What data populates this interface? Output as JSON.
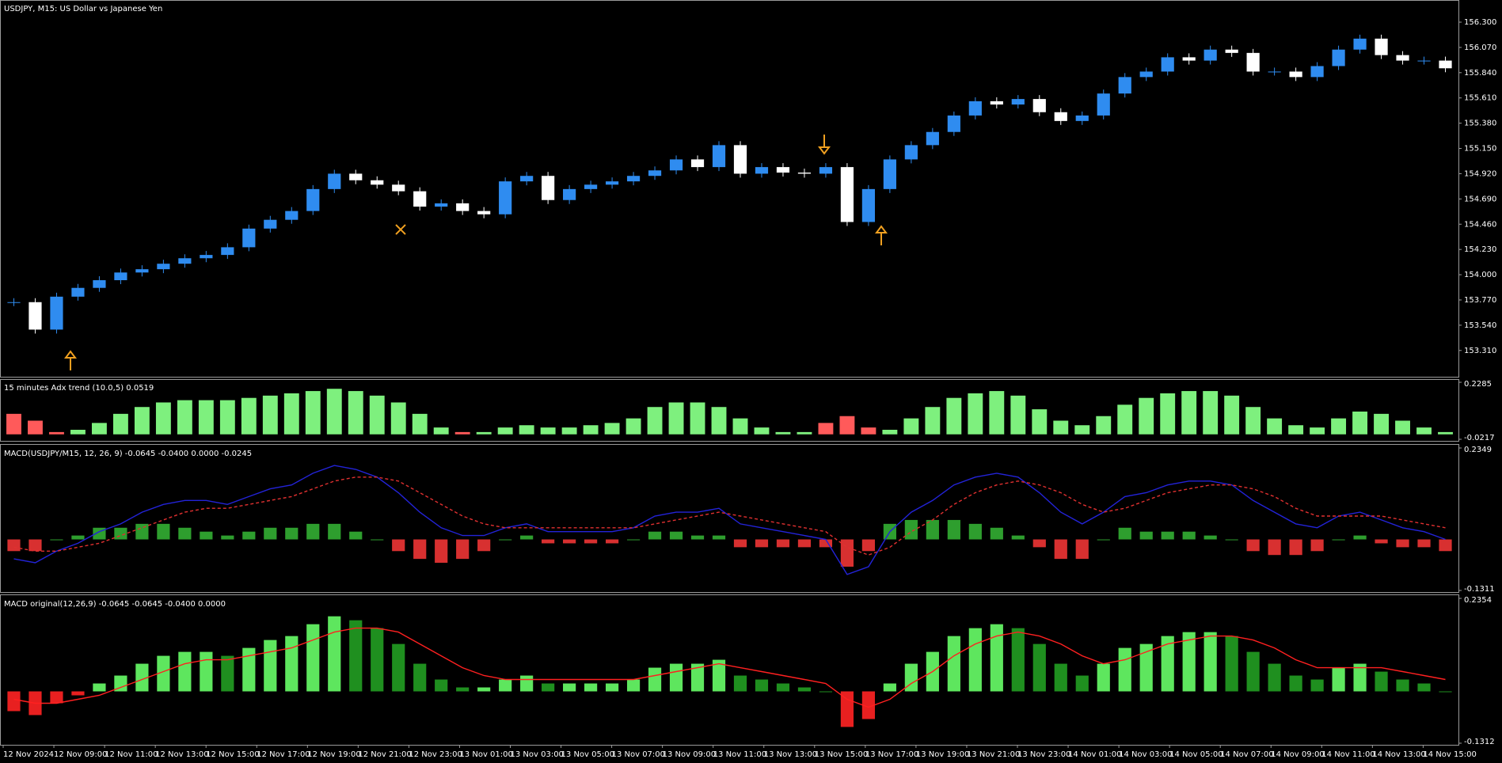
{
  "chart_data": [
    {
      "type": "candlestick",
      "title": "USDJPY, M15:  US Dollar vs Japanese Yen",
      "up_color": "#2f8cf0",
      "down_color": "#ffffff",
      "values": [
        153.75,
        153.5,
        153.8,
        153.88,
        153.95,
        154.02,
        154.05,
        154.1,
        154.15,
        154.18,
        154.25,
        154.42,
        154.5,
        154.58,
        154.78,
        154.92,
        154.86,
        154.82,
        154.76,
        154.62,
        154.65,
        154.58,
        154.55,
        154.85,
        154.9,
        154.68,
        154.78,
        154.82,
        154.85,
        154.9,
        154.95,
        155.05,
        154.98,
        155.18,
        154.92,
        154.98,
        154.93,
        154.92,
        154.98,
        154.48,
        154.78,
        155.05,
        155.18,
        155.3,
        155.45,
        155.58,
        155.55,
        155.6,
        155.48,
        155.4,
        155.45,
        155.65,
        155.8,
        155.85,
        155.98,
        155.95,
        156.05,
        156.02,
        155.85,
        155.85,
        155.8,
        155.9,
        156.05,
        156.15,
        156.0,
        155.95,
        155.95,
        155.88
      ],
      "ylim": [
        153.085,
        156.473
      ],
      "yticks": [
        {
          "value": 156.3,
          "label": "156.300"
        },
        {
          "value": 156.07,
          "label": "156.070"
        },
        {
          "value": 155.84,
          "label": "155.840"
        },
        {
          "value": 155.61,
          "label": "155.610"
        },
        {
          "value": 155.38,
          "label": "155.380"
        },
        {
          "value": 155.15,
          "label": "155.150"
        },
        {
          "value": 154.92,
          "label": "154.920"
        },
        {
          "value": 154.69,
          "label": "154.690"
        },
        {
          "value": 154.46,
          "label": "154.460"
        },
        {
          "value": 154.23,
          "label": "154.230"
        },
        {
          "value": 154.0,
          "label": "154.000"
        },
        {
          "value": 153.77,
          "label": "153.770"
        },
        {
          "value": 153.54,
          "label": "153.540"
        },
        {
          "value": 153.31,
          "label": "153.310"
        }
      ]
    },
    {
      "type": "bar",
      "title": "15 minutes Adx trend (10.0,5) 0.0519",
      "ylim": [
        -0.0217,
        0.2285
      ],
      "yticks": [
        0.2285,
        -0.0217
      ],
      "series": [
        {
          "color": "#7ef07e",
          "values": [
            null,
            null,
            null,
            0.02,
            0.05,
            0.09,
            0.12,
            0.14,
            0.15,
            0.15,
            0.15,
            0.16,
            0.17,
            0.18,
            0.19,
            0.2,
            0.19,
            0.17,
            0.14,
            0.09,
            0.03,
            null,
            0.01,
            0.03,
            0.04,
            0.03,
            0.03,
            0.04,
            0.05,
            0.07,
            0.12,
            0.14,
            0.14,
            0.12,
            0.07,
            0.03,
            0.01,
            0.01,
            null,
            null,
            null,
            0.02,
            0.07,
            0.12,
            0.16,
            0.18,
            0.19,
            0.17,
            0.11,
            0.06,
            0.04,
            0.08,
            0.13,
            0.16,
            0.18,
            0.19,
            0.19,
            0.17,
            0.12,
            0.07,
            0.04,
            0.03,
            0.07,
            0.1,
            0.09,
            0.06,
            0.03,
            0.01
          ]
        },
        {
          "color": "#ff5a5a",
          "values": [
            0.09,
            0.06,
            0.01,
            null,
            null,
            null,
            null,
            null,
            null,
            null,
            null,
            null,
            null,
            null,
            null,
            null,
            null,
            null,
            null,
            null,
            null,
            0.01,
            null,
            null,
            null,
            null,
            null,
            null,
            null,
            null,
            null,
            null,
            null,
            null,
            null,
            null,
            null,
            null,
            0.05,
            0.08,
            0.03,
            null,
            null,
            null,
            null,
            null,
            null,
            null,
            null,
            null,
            null,
            null,
            null,
            null,
            null,
            null,
            null,
            null,
            null,
            null,
            null,
            null,
            null,
            null,
            null,
            null,
            null,
            null
          ]
        }
      ]
    },
    {
      "type": "macd",
      "title": "MACD(USDJPY/M15, 12, 26, 9) -0.0645 -0.0400 0.0000 -0.0245",
      "ylim": [
        -0.1311,
        0.2349
      ],
      "yticks": [
        0.2349,
        -0.1311
      ],
      "up_color": "#2e9e2e",
      "down_color": "#d83030",
      "values": [
        -0.03,
        -0.03,
        0.0,
        0.01,
        0.03,
        0.03,
        0.04,
        0.04,
        0.03,
        0.02,
        0.01,
        0.02,
        0.03,
        0.03,
        0.04,
        0.04,
        0.02,
        0.0,
        -0.03,
        -0.05,
        -0.06,
        -0.05,
        -0.03,
        0.0,
        0.01,
        -0.01,
        -0.01,
        -0.01,
        -0.01,
        0.0,
        0.02,
        0.02,
        0.01,
        0.01,
        -0.02,
        -0.02,
        -0.02,
        -0.02,
        -0.02,
        -0.07,
        -0.03,
        0.04,
        0.05,
        0.05,
        0.05,
        0.04,
        0.03,
        0.01,
        -0.02,
        -0.05,
        -0.05,
        0.0,
        0.03,
        0.02,
        0.02,
        0.02,
        0.01,
        0.0,
        -0.03,
        -0.04,
        -0.04,
        -0.03,
        0.0,
        0.01,
        -0.01,
        -0.02,
        -0.02,
        -0.03
      ],
      "series": [
        {
          "color": "#2323d8",
          "values": [
            -0.05,
            -0.06,
            -0.03,
            -0.01,
            0.02,
            0.04,
            0.07,
            0.09,
            0.1,
            0.1,
            0.09,
            0.11,
            0.13,
            0.14,
            0.17,
            0.19,
            0.18,
            0.16,
            0.12,
            0.07,
            0.03,
            0.01,
            0.01,
            0.03,
            0.04,
            0.02,
            0.02,
            0.02,
            0.02,
            0.03,
            0.06,
            0.07,
            0.07,
            0.08,
            0.04,
            0.03,
            0.02,
            0.01,
            0.0,
            -0.09,
            -0.07,
            0.02,
            0.07,
            0.1,
            0.14,
            0.16,
            0.17,
            0.16,
            0.12,
            0.07,
            0.04,
            0.07,
            0.11,
            0.12,
            0.14,
            0.15,
            0.15,
            0.14,
            0.1,
            0.07,
            0.04,
            0.03,
            0.06,
            0.07,
            0.05,
            0.03,
            0.02,
            0.0
          ]
        },
        {
          "color": "#e03030",
          "dashed": true,
          "values": [
            -0.02,
            -0.03,
            -0.03,
            -0.02,
            -0.01,
            0.01,
            0.03,
            0.05,
            0.07,
            0.08,
            0.08,
            0.09,
            0.1,
            0.11,
            0.13,
            0.15,
            0.16,
            0.16,
            0.15,
            0.12,
            0.09,
            0.06,
            0.04,
            0.03,
            0.03,
            0.03,
            0.03,
            0.03,
            0.03,
            0.03,
            0.04,
            0.05,
            0.06,
            0.07,
            0.06,
            0.05,
            0.04,
            0.03,
            0.02,
            -0.02,
            -0.04,
            -0.02,
            0.02,
            0.05,
            0.09,
            0.12,
            0.14,
            0.15,
            0.14,
            0.12,
            0.09,
            0.07,
            0.08,
            0.1,
            0.12,
            0.13,
            0.14,
            0.14,
            0.13,
            0.11,
            0.08,
            0.06,
            0.06,
            0.06,
            0.06,
            0.05,
            0.04,
            0.03
          ]
        }
      ]
    },
    {
      "type": "macd",
      "title": "MACD original(12,26,9) -0.0645 -0.0645 -0.0400 0.0000",
      "ylim": [
        -0.1312,
        0.2354
      ],
      "yticks": [
        0.2354,
        -0.1312
      ],
      "up_color": "#5ee65e",
      "fall_color": "#1f8f1f",
      "down_color": "#e82020",
      "values": [
        -0.05,
        -0.06,
        -0.03,
        -0.01,
        0.02,
        0.04,
        0.07,
        0.09,
        0.1,
        0.1,
        0.09,
        0.11,
        0.13,
        0.14,
        0.17,
        0.19,
        0.18,
        0.16,
        0.12,
        0.07,
        0.03,
        0.01,
        0.01,
        0.03,
        0.04,
        0.02,
        0.02,
        0.02,
        0.02,
        0.03,
        0.06,
        0.07,
        0.07,
        0.08,
        0.04,
        0.03,
        0.02,
        0.01,
        0.0,
        -0.09,
        -0.07,
        0.02,
        0.07,
        0.1,
        0.14,
        0.16,
        0.17,
        0.16,
        0.12,
        0.07,
        0.04,
        0.07,
        0.11,
        0.12,
        0.14,
        0.15,
        0.15,
        0.14,
        0.1,
        0.07,
        0.04,
        0.03,
        0.06,
        0.07,
        0.05,
        0.03,
        0.02,
        0.0
      ],
      "series": [
        {
          "color": "#ff2020",
          "values": [
            -0.02,
            -0.03,
            -0.03,
            -0.02,
            -0.01,
            0.01,
            0.03,
            0.05,
            0.07,
            0.08,
            0.08,
            0.09,
            0.1,
            0.11,
            0.13,
            0.15,
            0.16,
            0.16,
            0.15,
            0.12,
            0.09,
            0.06,
            0.04,
            0.03,
            0.03,
            0.03,
            0.03,
            0.03,
            0.03,
            0.03,
            0.04,
            0.05,
            0.06,
            0.07,
            0.06,
            0.05,
            0.04,
            0.03,
            0.02,
            -0.02,
            -0.04,
            -0.02,
            0.02,
            0.05,
            0.09,
            0.12,
            0.14,
            0.15,
            0.14,
            0.12,
            0.09,
            0.07,
            0.08,
            0.1,
            0.12,
            0.13,
            0.14,
            0.14,
            0.13,
            0.11,
            0.08,
            0.06,
            0.06,
            0.06,
            0.06,
            0.05,
            0.04,
            0.03
          ]
        }
      ],
      "x_labels": [
        "12 Nov 2024",
        "12 Nov 09:00",
        "12 Nov 11:00",
        "12 Nov 13:00",
        "12 Nov 15:00",
        "12 Nov 17:00",
        "12 Nov 19:00",
        "12 Nov 21:00",
        "12 Nov 23:00",
        "13 Nov 01:00",
        "13 Nov 03:00",
        "13 Nov 05:00",
        "13 Nov 07:00",
        "13 Nov 09:00",
        "13 Nov 11:00",
        "13 Nov 13:00",
        "13 Nov 15:00",
        "13 Nov 17:00",
        "13 Nov 19:00",
        "13 Nov 21:00",
        "13 Nov 23:00",
        "14 Nov 01:00",
        "14 Nov 03:00",
        "14 Nov 05:00",
        "14 Nov 07:00",
        "14 Nov 09:00",
        "14 Nov 11:00",
        "14 Nov 13:00",
        "14 Nov 15:00"
      ]
    }
  ]
}
